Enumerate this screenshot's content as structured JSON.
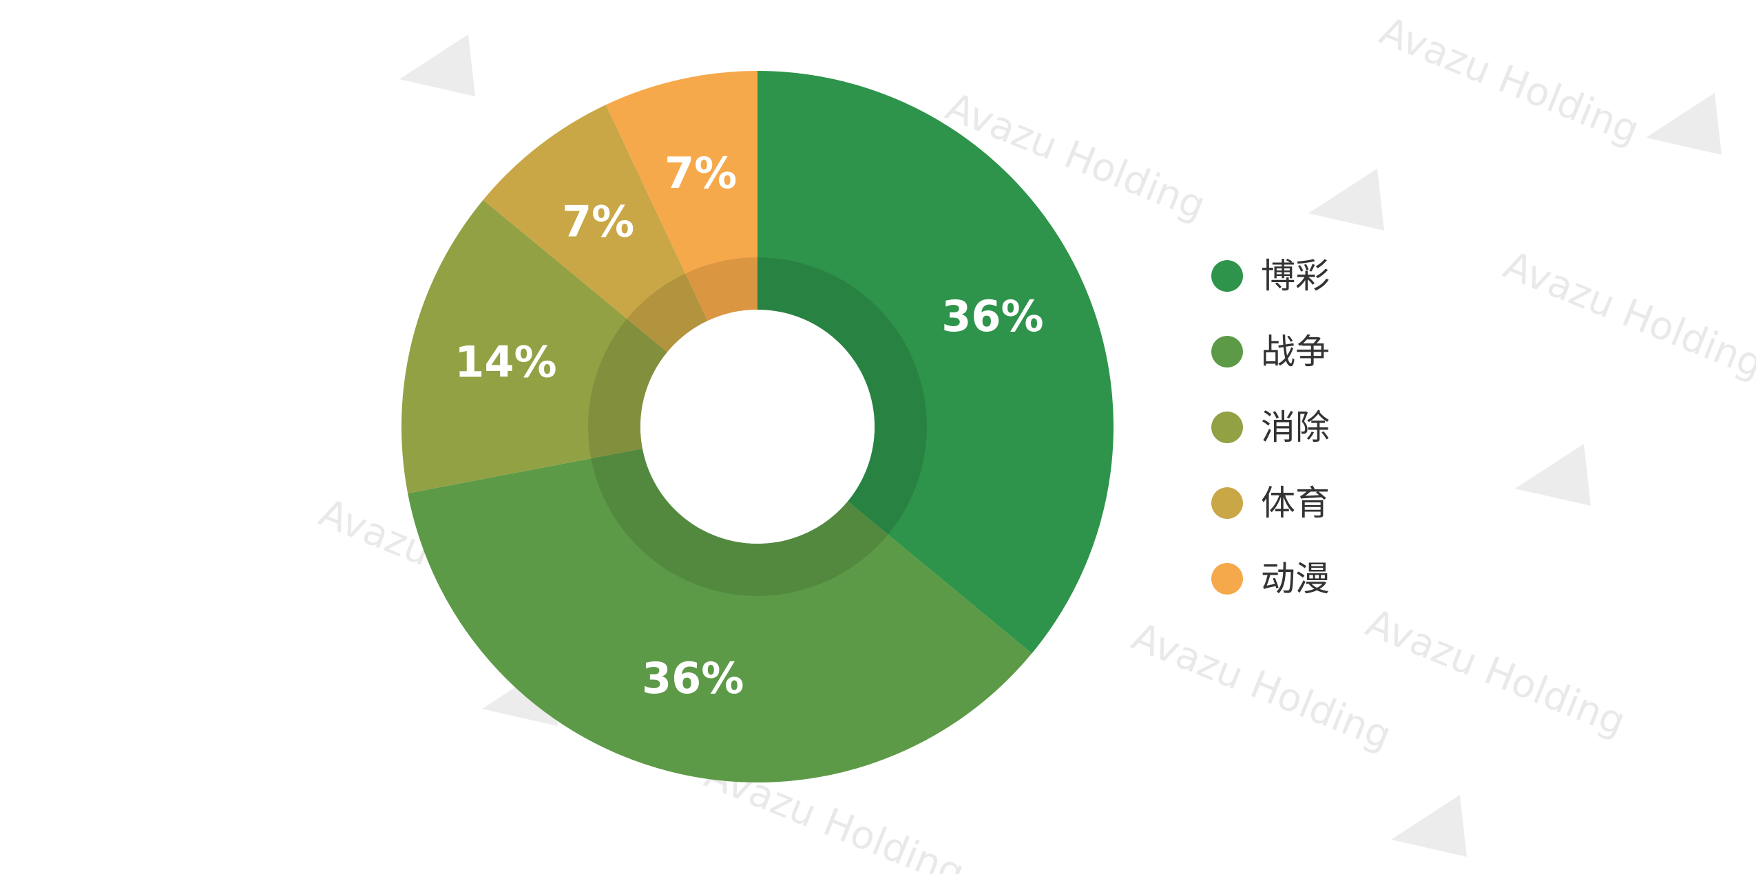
{
  "watermark": {
    "text": "Avazu Holding"
  },
  "chart_data": {
    "type": "pie",
    "variant": "donut",
    "title": "",
    "categories": [
      "博彩",
      "战争",
      "消除",
      "体育",
      "动漫"
    ],
    "values": [
      36,
      36,
      14,
      7,
      7
    ],
    "labels": [
      "36%",
      "36%",
      "14%",
      "7%",
      "7%"
    ],
    "colors": [
      "#2e944b",
      "#5d9a47",
      "#93a145",
      "#c9a746",
      "#f6a94b"
    ],
    "start_angle_deg": 0,
    "direction": "clockwise",
    "legend_position": "right",
    "label_color": "#ffffff"
  }
}
